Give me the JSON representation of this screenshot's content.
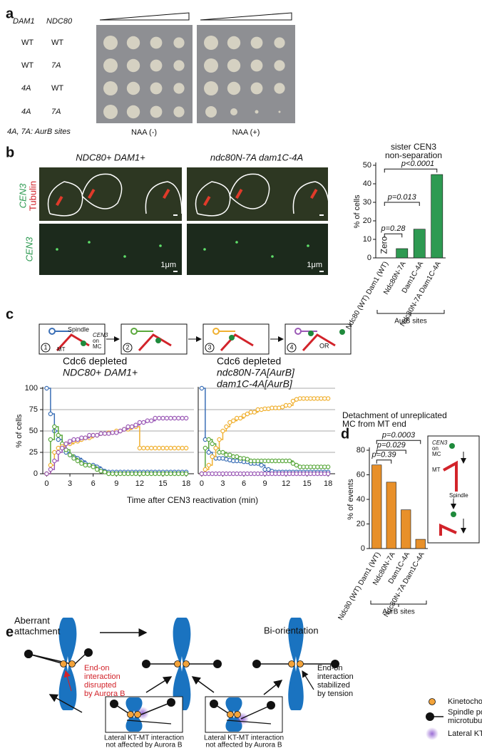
{
  "panel_labels": [
    "a",
    "b",
    "c",
    "d",
    "e"
  ],
  "panel_a": {
    "headers": [
      "DAM1",
      "NDC80"
    ],
    "rows": [
      [
        "WT",
        "WT"
      ],
      [
        "WT",
        "7A"
      ],
      [
        "4A",
        "WT"
      ],
      [
        "4A",
        "7A"
      ]
    ],
    "footnote": "4A, 7A: AurB sites",
    "conditions": [
      "NAA (-)",
      "NAA (+)"
    ]
  },
  "panel_b": {
    "image_titles": [
      "NDC80+ DAM1+",
      "ndc80N-7A dam1C-4A"
    ],
    "channel_top": [
      "CEN3",
      "Tubulin"
    ],
    "channel_bottom": "CEN3",
    "scale_bars": [
      "1μm",
      "1μm"
    ]
  },
  "panel_c": {
    "schematic": {
      "steps": [
        "1",
        "2",
        "3",
        "4"
      ],
      "spindle": "Spindle",
      "cen3": [
        "CEN3",
        "on",
        "MC"
      ],
      "mt": "MT",
      "or": "OR"
    }
  },
  "panel_d": {
    "inset": {
      "cen3": [
        "CEN3",
        "on",
        "MC"
      ],
      "mt": "MT",
      "spindle": "Spindle"
    }
  },
  "chart_data": [
    {
      "type": "bar",
      "title": [
        "sister CEN3",
        "non-separation"
      ],
      "ylabel": "% of cells",
      "categories": [
        "Ndc80 (WT) Dam1 (WT)",
        "Ndc80N-7A",
        "Dam1C-4A",
        "Ndc80N-7A Dam1C-4A"
      ],
      "values": [
        0,
        5,
        15.5,
        45
      ],
      "color": "#2e9a52",
      "ylim": [
        0,
        50
      ],
      "yticks": [
        0,
        10,
        20,
        30,
        40,
        50
      ],
      "annotations": [
        "Zero",
        "p=0.28",
        "p=0.013",
        "p<0.0001"
      ],
      "group_label": "AurB sites"
    },
    {
      "type": "line",
      "title": [
        "Cdc6 depleted",
        "NDC80+ DAM1+"
      ],
      "ylabel": "% of cells",
      "xlabel": "Time after CEN3 reactivation (min)",
      "x": [
        0,
        0.5,
        1,
        1.5,
        2,
        2.5,
        3,
        3.5,
        4,
        4.5,
        5,
        5.5,
        6,
        6.5,
        7,
        7.5,
        8,
        8.5,
        9,
        9.5,
        10,
        10.5,
        11,
        11.5,
        12,
        12.5,
        13,
        13.5,
        14,
        14.5,
        15,
        15.5,
        16,
        16.5,
        17,
        17.5,
        18
      ],
      "xlim": [
        -0.5,
        19
      ],
      "xticks": [
        0,
        3,
        6,
        9,
        12,
        15,
        18
      ],
      "ylim": [
        0,
        100
      ],
      "yticks": [
        0,
        25,
        50,
        75,
        100
      ],
      "grid": true,
      "series": [
        {
          "color": "#3b6fb6",
          "values": [
            100,
            70,
            50,
            40,
            30,
            25,
            22,
            20,
            18,
            15,
            12,
            10,
            10,
            8,
            5,
            3,
            2,
            2,
            2,
            2,
            2,
            2,
            2,
            2,
            2,
            2,
            2,
            2,
            2,
            2,
            2,
            2,
            2,
            2,
            2,
            2,
            2
          ]
        },
        {
          "color": "#5aa83c",
          "values": [
            0,
            40,
            55,
            45,
            35,
            28,
            22,
            18,
            15,
            12,
            10,
            10,
            8,
            5,
            3,
            2,
            0,
            0,
            0,
            0,
            0,
            0,
            0,
            0,
            0,
            0,
            0,
            0,
            0,
            0,
            0,
            0,
            0,
            0,
            0,
            0,
            0
          ]
        },
        {
          "color": "#f0b030",
          "values": [
            0,
            10,
            25,
            30,
            32,
            35,
            35,
            38,
            38,
            40,
            42,
            42,
            45,
            45,
            47,
            47,
            48,
            48,
            50,
            50,
            52,
            52,
            55,
            55,
            30,
            30,
            30,
            30,
            30,
            30,
            30,
            30,
            30,
            30,
            30,
            30,
            30
          ]
        },
        {
          "color": "#9b59b6",
          "values": [
            0,
            5,
            15,
            25,
            30,
            35,
            38,
            40,
            40,
            42,
            42,
            45,
            45,
            45,
            47,
            47,
            47,
            48,
            48,
            50,
            52,
            55,
            55,
            57,
            60,
            60,
            62,
            62,
            65,
            65,
            65,
            65,
            65,
            65,
            65,
            65,
            65
          ]
        }
      ]
    },
    {
      "type": "line",
      "title": [
        "Cdc6 depleted",
        "ndc80N-7A[AurB]",
        "dam1C-4A[AurB]"
      ],
      "x": [
        0,
        0.5,
        1,
        1.5,
        2,
        2.5,
        3,
        3.5,
        4,
        4.5,
        5,
        5.5,
        6,
        6.5,
        7,
        7.5,
        8,
        8.5,
        9,
        9.5,
        10,
        10.5,
        11,
        11.5,
        12,
        12.5,
        13,
        13.5,
        14,
        14.5,
        15,
        15.5,
        16,
        16.5,
        17,
        17.5,
        18
      ],
      "xlim": [
        -0.5,
        19
      ],
      "xticks": [
        0,
        3,
        6,
        9,
        12,
        15,
        18
      ],
      "ylim": [
        0,
        100
      ],
      "yticks": [
        0,
        25,
        50,
        75,
        100
      ],
      "grid": true,
      "series": [
        {
          "color": "#3b6fb6",
          "values": [
            100,
            40,
            25,
            20,
            18,
            18,
            18,
            17,
            16,
            15,
            15,
            15,
            14,
            14,
            12,
            12,
            12,
            10,
            5,
            5,
            3,
            2,
            2,
            2,
            2,
            2,
            2,
            2,
            2,
            2,
            2,
            2,
            2,
            2,
            2,
            2,
            2
          ]
        },
        {
          "color": "#5aa83c",
          "values": [
            0,
            30,
            40,
            35,
            30,
            25,
            25,
            22,
            22,
            20,
            20,
            18,
            18,
            17,
            15,
            15,
            15,
            15,
            15,
            15,
            15,
            15,
            15,
            15,
            15,
            15,
            12,
            10,
            8,
            8,
            8,
            8,
            8,
            8,
            8,
            8,
            8
          ]
        },
        {
          "color": "#f0b030",
          "values": [
            0,
            5,
            10,
            20,
            30,
            40,
            50,
            55,
            60,
            62,
            65,
            65,
            68,
            70,
            72,
            72,
            75,
            75,
            76,
            76,
            77,
            77,
            77,
            78,
            80,
            80,
            85,
            87,
            88,
            88,
            88,
            88,
            88,
            88,
            88,
            88,
            88
          ]
        },
        {
          "color": "#9b59b6",
          "values": [
            0,
            0,
            0,
            0,
            0,
            0,
            0,
            0,
            0,
            0,
            0,
            0,
            0,
            0,
            0,
            0,
            0,
            0,
            0,
            0,
            0,
            0,
            0,
            0,
            0,
            0,
            0,
            0,
            0,
            0,
            0,
            0,
            0,
            0,
            0,
            0,
            0
          ]
        }
      ]
    },
    {
      "type": "bar",
      "title": [
        "Detachment of unreplicated",
        "MC from MT end"
      ],
      "ylabel": "% of events",
      "categories": [
        "Ndc80 (WT) Dam1 (WT)",
        "Ndc80N-7A",
        "Dam1C-4A",
        "Ndc80N-7A Dam1C-4A"
      ],
      "values": [
        68,
        54,
        31.5,
        7.5
      ],
      "color": "#e8902a",
      "ylim": [
        0,
        80
      ],
      "yticks": [
        0,
        20,
        40,
        60,
        80
      ],
      "annotations": [
        null,
        "p=0.39",
        "p=0.029",
        "p=0.0003"
      ],
      "group_label": "AurB sites"
    }
  ],
  "panel_e": {
    "left_title": [
      "Aberrant",
      "attachment"
    ],
    "right_title": "Bi-orientation",
    "disrupted": [
      "End-on",
      "interaction",
      "disrupted",
      "by Aurora B"
    ],
    "stabilized": [
      "End-on",
      "interaction",
      "stabilized",
      "by tension"
    ],
    "lateral_captions": [
      [
        "Lateral KT-MT interaction",
        "not affected by Aurora B"
      ],
      [
        "Lateral KT-MT interaction",
        "not affected by Aurora B"
      ]
    ],
    "legend": [
      [
        "Kinetochore"
      ],
      [
        "Spindle pole and",
        "microtubule"
      ],
      [
        "Lateral KT-MT interaction"
      ]
    ]
  }
}
